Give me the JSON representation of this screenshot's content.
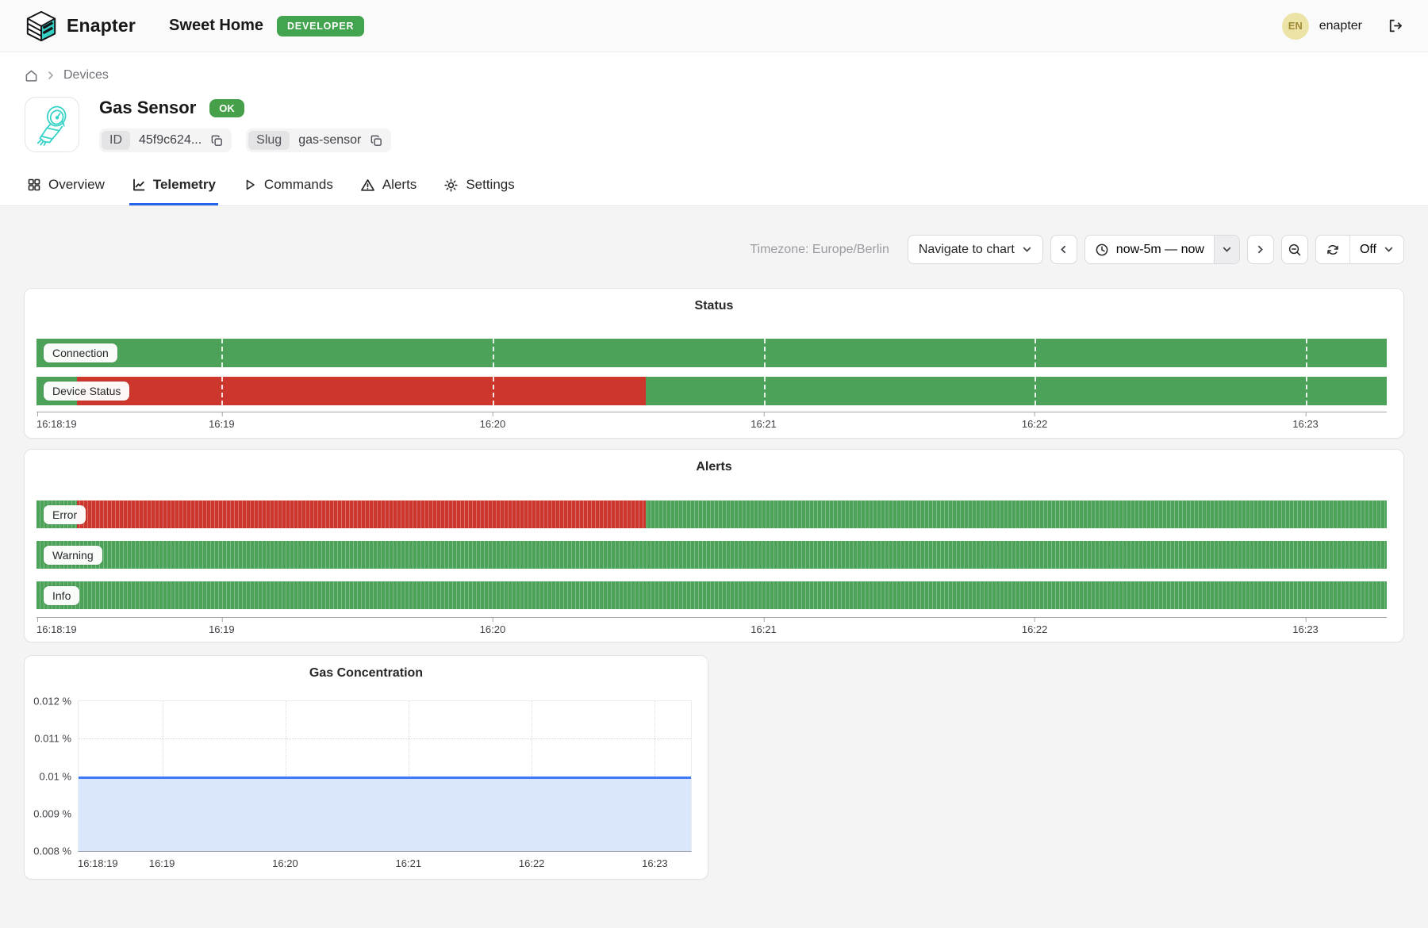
{
  "header": {
    "brand": "Enapter",
    "site_name": "Sweet Home",
    "env_badge": "DEVELOPER",
    "avatar_initials": "EN",
    "username": "enapter"
  },
  "breadcrumb": {
    "current": "Devices"
  },
  "device": {
    "name": "Gas Sensor",
    "status": "OK",
    "id_label": "ID",
    "id_value": "45f9c624...",
    "slug_label": "Slug",
    "slug_value": "gas-sensor"
  },
  "tabs": [
    {
      "label": "Overview",
      "active": false
    },
    {
      "label": "Telemetry",
      "active": true
    },
    {
      "label": "Commands",
      "active": false
    },
    {
      "label": "Alerts",
      "active": false
    },
    {
      "label": "Settings",
      "active": false
    }
  ],
  "toolbar": {
    "timezone": "Timezone: Europe/Berlin",
    "navigate_label": "Navigate to chart",
    "range_label": "now-5m — now",
    "auto_refresh": "Off"
  },
  "colors": {
    "green": "#4ba258",
    "red": "#cc362d",
    "accent_blue": "#2563eb",
    "line_blue": "#3e79f7",
    "area_blue": "#d9e6fb",
    "badge_green": "#43a450"
  },
  "charts": {
    "status": {
      "title": "Status",
      "striped": false,
      "dashed_gridlines": true,
      "ticks": [
        {
          "label": "16:18:19",
          "pos": 0
        },
        {
          "label": "16:19",
          "pos": 0.1371
        },
        {
          "label": "16:20",
          "pos": 0.3378
        },
        {
          "label": "16:21",
          "pos": 0.5385
        },
        {
          "label": "16:22",
          "pos": 0.7392
        },
        {
          "label": "16:23",
          "pos": 0.9398
        }
      ],
      "rows": [
        {
          "label": "Connection",
          "segments": [
            {
              "color": "green",
              "from": 0,
              "to": 1
            }
          ]
        },
        {
          "label": "Device Status",
          "segments": [
            {
              "color": "green",
              "from": 0,
              "to": 0.03
            },
            {
              "color": "red",
              "from": 0.03,
              "to": 0.4515
            },
            {
              "color": "green",
              "from": 0.4515,
              "to": 1
            }
          ]
        }
      ]
    },
    "alerts": {
      "title": "Alerts",
      "striped": true,
      "dashed_gridlines": false,
      "ticks": [
        {
          "label": "16:18:19",
          "pos": 0
        },
        {
          "label": "16:19",
          "pos": 0.1371
        },
        {
          "label": "16:20",
          "pos": 0.3378
        },
        {
          "label": "16:21",
          "pos": 0.5385
        },
        {
          "label": "16:22",
          "pos": 0.7392
        },
        {
          "label": "16:23",
          "pos": 0.9398
        }
      ],
      "rows": [
        {
          "label": "Error",
          "segments": [
            {
              "color": "green",
              "from": 0,
              "to": 0.03
            },
            {
              "color": "red",
              "from": 0.03,
              "to": 0.4515
            },
            {
              "color": "green",
              "from": 0.4515,
              "to": 1
            }
          ]
        },
        {
          "label": "Warning",
          "segments": [
            {
              "color": "green",
              "from": 0,
              "to": 1
            }
          ]
        },
        {
          "label": "Info",
          "segments": [
            {
              "color": "green",
              "from": 0,
              "to": 1
            }
          ]
        }
      ]
    },
    "gas": {
      "title": "Gas Concentration",
      "y_labels": [
        "0.012 %",
        "0.011 %",
        "0.01 %",
        "0.009 %",
        "0.008 %"
      ],
      "value_frac_from_top": 0.5,
      "ticks": [
        {
          "label": "16:18:19",
          "pos": 0
        },
        {
          "label": "16:19",
          "pos": 0.1371
        },
        {
          "label": "16:20",
          "pos": 0.3378
        },
        {
          "label": "16:21",
          "pos": 0.5385
        },
        {
          "label": "16:22",
          "pos": 0.7392
        },
        {
          "label": "16:23",
          "pos": 0.9398
        }
      ]
    }
  },
  "chart_data": [
    {
      "type": "timeline",
      "title": "Status",
      "x_ticks": [
        "16:18:19",
        "16:19",
        "16:20",
        "16:21",
        "16:22",
        "16:23"
      ],
      "x_range": [
        "16:18:19",
        "16:23:18"
      ],
      "rows": [
        {
          "name": "Connection",
          "segments": [
            {
              "state": "connected",
              "color": "green",
              "from": "16:18:19",
              "to": "16:23:18"
            }
          ]
        },
        {
          "name": "Device Status",
          "segments": [
            {
              "state": "ok",
              "color": "green",
              "from": "16:18:19",
              "to": "16:18:28"
            },
            {
              "state": "error",
              "color": "red",
              "from": "16:18:28",
              "to": "16:20:34"
            },
            {
              "state": "ok",
              "color": "green",
              "from": "16:20:34",
              "to": "16:23:18"
            }
          ]
        }
      ]
    },
    {
      "type": "timeline",
      "title": "Alerts",
      "x_ticks": [
        "16:18:19",
        "16:19",
        "16:20",
        "16:21",
        "16:22",
        "16:23"
      ],
      "x_range": [
        "16:18:19",
        "16:23:18"
      ],
      "rows": [
        {
          "name": "Error",
          "segments": [
            {
              "state": "no_alert",
              "color": "green",
              "from": "16:18:19",
              "to": "16:18:28"
            },
            {
              "state": "alert_active",
              "color": "red",
              "from": "16:18:28",
              "to": "16:20:34"
            },
            {
              "state": "no_alert",
              "color": "green",
              "from": "16:20:34",
              "to": "16:23:18"
            }
          ]
        },
        {
          "name": "Warning",
          "segments": [
            {
              "state": "no_alert",
              "color": "green",
              "from": "16:18:19",
              "to": "16:23:18"
            }
          ]
        },
        {
          "name": "Info",
          "segments": [
            {
              "state": "no_alert",
              "color": "green",
              "from": "16:18:19",
              "to": "16:23:18"
            }
          ]
        }
      ]
    },
    {
      "type": "area",
      "title": "Gas Concentration",
      "xlabel": "",
      "ylabel": "%",
      "ylim": [
        0.008,
        0.012
      ],
      "y_ticks": [
        0.012,
        0.011,
        0.01,
        0.009,
        0.008
      ],
      "x_ticks": [
        "16:18:19",
        "16:19",
        "16:20",
        "16:21",
        "16:22",
        "16:23"
      ],
      "grid": true,
      "legend": false,
      "series": [
        {
          "name": "Gas Concentration",
          "unit": "%",
          "value_constant": 0.01,
          "x_range": [
            "16:18:19",
            "16:23:18"
          ]
        }
      ]
    }
  ]
}
